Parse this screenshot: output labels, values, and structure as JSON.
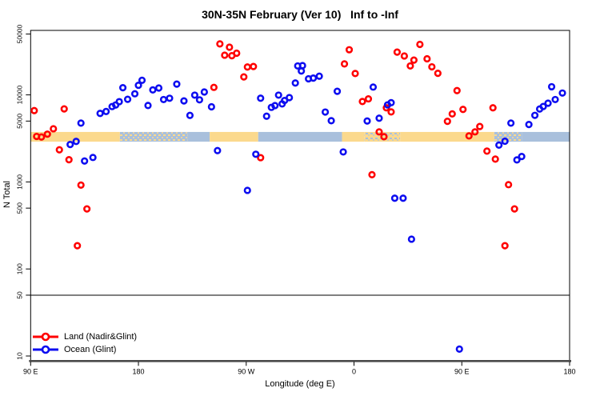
{
  "title": "30N-35N February (Ver 10)   Inf to -Inf",
  "x_axis": {
    "label": "Longitude (deg E)",
    "ticks": [
      {
        "pos": 90,
        "label": "90 E"
      },
      {
        "pos": 180,
        "label": "180"
      },
      {
        "pos": 270,
        "label": "90 W"
      },
      {
        "pos": 360,
        "label": "0"
      },
      {
        "pos": 450,
        "label": "90 E"
      },
      {
        "pos": 540,
        "label": "180"
      }
    ]
  },
  "y_axis": {
    "label": "N Total",
    "ticks": [
      {
        "value": 50000,
        "label": "50000"
      },
      {
        "value": 10000,
        "label": "10000"
      },
      {
        "value": 5000,
        "label": "5000"
      },
      {
        "value": 1000,
        "label": "1000"
      },
      {
        "value": 500,
        "label": "500"
      },
      {
        "value": 100,
        "label": "100"
      },
      {
        "value": 50,
        "label": "50"
      },
      {
        "value": 10,
        "label": "10"
      }
    ]
  },
  "legend": {
    "items": [
      {
        "key": "land",
        "label": "Land (Nadir&Glint)",
        "color": "#ff0000"
      },
      {
        "key": "ocean",
        "label": "Ocean (Glint)",
        "color": "#0d0df0"
      }
    ]
  },
  "colors": {
    "land": "#ff0000",
    "ocean": "#0d0df0",
    "band_yellow": "#fbd98d",
    "band_blue": "#a9c0dc",
    "axis_line": "#4a4a4a",
    "box_line": "#000000"
  },
  "reference_line": {
    "value": 50
  },
  "band": {
    "value_range": [
      2900,
      3750
    ],
    "segments": [
      {
        "from": 90,
        "to": 164.5,
        "fill": "yellow"
      },
      {
        "from": 164.5,
        "to": 221,
        "fill": "blue_speckled"
      },
      {
        "from": 221,
        "to": 239.5,
        "fill": "blue"
      },
      {
        "from": 239.5,
        "to": 280,
        "fill": "yellow"
      },
      {
        "from": 280,
        "to": 350,
        "fill": "blue"
      },
      {
        "from": 350,
        "to": 368.5,
        "fill": "yellow"
      },
      {
        "from": 368.5,
        "to": 398.5,
        "fill": "yellow_speckled"
      },
      {
        "from": 398.5,
        "to": 477,
        "fill": "yellow"
      },
      {
        "from": 477,
        "to": 500,
        "fill": "blue_speckled"
      },
      {
        "from": 500,
        "to": 540,
        "fill": "blue"
      }
    ]
  },
  "chart_data": {
    "type": "scatter",
    "title": "30N-35N February (Ver 10)   Inf to -Inf",
    "xlabel": "Longitude (deg E)",
    "ylabel": "N Total",
    "x_unit": "longitude axis position, deg E continuing 90..540 (540 = 180)",
    "xlim": [
      90,
      540
    ],
    "ylim": [
      10,
      50000
    ],
    "y_scale": "log",
    "legend_position": "bottom-left",
    "marker": "open-circle",
    "series": [
      {
        "name": "Land (Nadir&Glint)",
        "color": "#ff0000",
        "points": [
          [
            93,
            6600
          ],
          [
            95,
            3330
          ],
          [
            99,
            3280
          ],
          [
            104,
            3540
          ],
          [
            109,
            4080
          ],
          [
            114,
            2340
          ],
          [
            118,
            6900
          ],
          [
            122,
            1800
          ],
          [
            129,
            185
          ],
          [
            132,
            920
          ],
          [
            137,
            490
          ],
          [
            243,
            12200
          ],
          [
            248,
            38500
          ],
          [
            252,
            28600
          ],
          [
            256,
            35300
          ],
          [
            258,
            28200
          ],
          [
            262,
            30100
          ],
          [
            268,
            16100
          ],
          [
            271,
            20900
          ],
          [
            276,
            21200
          ],
          [
            282,
            1900
          ],
          [
            352,
            22700
          ],
          [
            356,
            33000
          ],
          [
            361,
            17600
          ],
          [
            367,
            8400
          ],
          [
            372,
            9000
          ],
          [
            375,
            1210
          ],
          [
            381,
            3760
          ],
          [
            385,
            3310
          ],
          [
            387,
            7100
          ],
          [
            391,
            6370
          ],
          [
            396,
            31000
          ],
          [
            402,
            28000
          ],
          [
            407,
            21500
          ],
          [
            410,
            25100
          ],
          [
            415,
            38000
          ],
          [
            421,
            26000
          ],
          [
            425,
            21000
          ],
          [
            430,
            17700
          ],
          [
            438,
            4970
          ],
          [
            442,
            6050
          ],
          [
            446,
            11200
          ],
          [
            451,
            6810
          ],
          [
            456,
            3380
          ],
          [
            461,
            3760
          ],
          [
            465,
            4330
          ],
          [
            471,
            2260
          ],
          [
            476,
            7100
          ],
          [
            478,
            1830
          ],
          [
            486,
            185
          ],
          [
            489,
            930
          ],
          [
            494,
            490
          ]
        ]
      },
      {
        "name": "Ocean (Glint)",
        "color": "#0d0df0",
        "points": [
          [
            123,
            2690
          ],
          [
            128,
            2920
          ],
          [
            132,
            4740
          ],
          [
            135,
            1740
          ],
          [
            142,
            1910
          ],
          [
            148,
            6130
          ],
          [
            153,
            6440
          ],
          [
            158,
            7340
          ],
          [
            161,
            7650
          ],
          [
            164,
            8360
          ],
          [
            167,
            12100
          ],
          [
            171,
            8900
          ],
          [
            177,
            10300
          ],
          [
            180,
            12900
          ],
          [
            183,
            14700
          ],
          [
            188,
            7550
          ],
          [
            192,
            11400
          ],
          [
            197,
            12000
          ],
          [
            201,
            8840
          ],
          [
            206,
            9150
          ],
          [
            212,
            13300
          ],
          [
            218,
            8530
          ],
          [
            223,
            5810
          ],
          [
            227,
            9930
          ],
          [
            231,
            8770
          ],
          [
            235,
            10800
          ],
          [
            241,
            7290
          ],
          [
            246,
            2290
          ],
          [
            271,
            800
          ],
          [
            278,
            2080
          ],
          [
            282,
            9160
          ],
          [
            287,
            5690
          ],
          [
            291,
            7190
          ],
          [
            294,
            7540
          ],
          [
            297,
            9930
          ],
          [
            300,
            7880
          ],
          [
            302,
            8620
          ],
          [
            306,
            9300
          ],
          [
            311,
            13700
          ],
          [
            313,
            21500
          ],
          [
            316,
            18800
          ],
          [
            317,
            21700
          ],
          [
            322,
            15300
          ],
          [
            326,
            15600
          ],
          [
            331,
            16400
          ],
          [
            336,
            6350
          ],
          [
            341,
            5050
          ],
          [
            346,
            11000
          ],
          [
            351,
            2210
          ],
          [
            371,
            5010
          ],
          [
            376,
            12300
          ],
          [
            381,
            5400
          ],
          [
            388,
            7680
          ],
          [
            391,
            8140
          ],
          [
            394,
            650
          ],
          [
            401,
            650
          ],
          [
            408,
            220
          ],
          [
            448,
            12
          ],
          [
            481,
            2650
          ],
          [
            486,
            2940
          ],
          [
            491,
            4740
          ],
          [
            496,
            1790
          ],
          [
            500,
            1960
          ],
          [
            506,
            4570
          ],
          [
            511,
            5820
          ],
          [
            515,
            6880
          ],
          [
            518,
            7350
          ],
          [
            522,
            8030
          ],
          [
            525,
            12400
          ],
          [
            528,
            8840
          ],
          [
            534,
            10500
          ]
        ]
      }
    ]
  }
}
